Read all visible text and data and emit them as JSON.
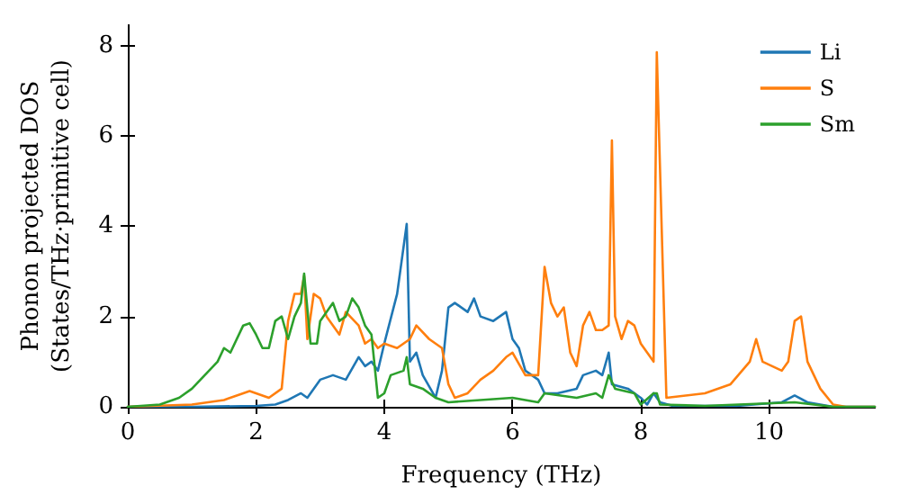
{
  "chart_data": {
    "type": "line",
    "xlabel": "Frequency (THz)",
    "ylabel": "Phonon projected DOS\n(States/THz·primitive cell)",
    "xlim": [
      0,
      11.65
    ],
    "ylim": [
      0,
      8.45
    ],
    "xticks": [
      0,
      2,
      4,
      6,
      8,
      10
    ],
    "yticks": [
      0,
      2,
      4,
      6,
      8
    ],
    "grid": false,
    "legend": "top right",
    "marker": "none",
    "line_style": "solid",
    "series": [
      {
        "name": "Li",
        "color": "#1f77b4",
        "x": [
          0,
          1,
          2,
          2.3,
          2.5,
          2.7,
          2.8,
          3.0,
          3.2,
          3.4,
          3.6,
          3.7,
          3.8,
          3.9,
          4.0,
          4.2,
          4.35,
          4.4,
          4.5,
          4.6,
          4.8,
          4.9,
          5.0,
          5.1,
          5.3,
          5.4,
          5.5,
          5.7,
          5.9,
          6.0,
          6.1,
          6.2,
          6.4,
          6.5,
          6.7,
          7.0,
          7.1,
          7.3,
          7.4,
          7.5,
          7.55,
          7.8,
          8.0,
          8.1,
          8.2,
          8.3,
          8.5,
          9.5,
          10.2,
          10.4,
          10.6,
          11.0,
          11.65
        ],
        "values": [
          0,
          0,
          0.02,
          0.05,
          0.15,
          0.3,
          0.2,
          0.6,
          0.7,
          0.6,
          1.1,
          0.9,
          1.0,
          0.8,
          1.4,
          2.5,
          4.05,
          1.0,
          1.2,
          0.7,
          0.2,
          0.8,
          2.2,
          2.3,
          2.1,
          2.4,
          2.0,
          1.9,
          2.1,
          1.5,
          1.3,
          0.8,
          0.6,
          0.3,
          0.3,
          0.4,
          0.7,
          0.8,
          0.7,
          1.2,
          0.5,
          0.4,
          0.2,
          0.05,
          0.3,
          0.1,
          0.02,
          0.02,
          0.1,
          0.25,
          0.1,
          0,
          0
        ]
      },
      {
        "name": "S",
        "color": "#ff7f0e",
        "x": [
          0,
          1,
          1.5,
          1.8,
          1.9,
          2.0,
          2.2,
          2.4,
          2.5,
          2.6,
          2.7,
          2.75,
          2.8,
          2.9,
          3.0,
          3.1,
          3.3,
          3.4,
          3.6,
          3.7,
          3.8,
          3.9,
          4.0,
          4.2,
          4.3,
          4.4,
          4.5,
          4.7,
          4.9,
          5.0,
          5.1,
          5.3,
          5.5,
          5.7,
          5.9,
          6.0,
          6.2,
          6.4,
          6.5,
          6.6,
          6.7,
          6.8,
          6.9,
          7.0,
          7.1,
          7.2,
          7.3,
          7.4,
          7.5,
          7.55,
          7.6,
          7.7,
          7.8,
          7.9,
          8.0,
          8.2,
          8.25,
          8.4,
          9.0,
          9.4,
          9.7,
          9.8,
          9.9,
          10.2,
          10.3,
          10.4,
          10.5,
          10.6,
          10.8,
          11.0,
          11.2,
          11.65
        ],
        "values": [
          0,
          0.05,
          0.15,
          0.3,
          0.35,
          0.3,
          0.2,
          0.4,
          1.9,
          2.5,
          2.5,
          2.9,
          1.5,
          2.5,
          2.4,
          2.0,
          1.6,
          2.1,
          1.8,
          1.4,
          1.5,
          1.3,
          1.4,
          1.3,
          1.4,
          1.5,
          1.8,
          1.5,
          1.3,
          0.5,
          0.2,
          0.3,
          0.6,
          0.8,
          1.1,
          1.2,
          0.7,
          0.7,
          3.1,
          2.3,
          2.0,
          2.2,
          1.2,
          0.9,
          1.8,
          2.1,
          1.7,
          1.7,
          1.8,
          5.9,
          2.0,
          1.5,
          1.9,
          1.8,
          1.4,
          1.0,
          7.85,
          0.2,
          0.3,
          0.5,
          1.0,
          1.5,
          1.0,
          0.8,
          1.0,
          1.9,
          2.0,
          1.0,
          0.4,
          0.05,
          0,
          0
        ]
      },
      {
        "name": "Sm",
        "color": "#2ca02c",
        "x": [
          0,
          0.5,
          0.8,
          1.0,
          1.2,
          1.4,
          1.5,
          1.6,
          1.8,
          1.9,
          2.0,
          2.1,
          2.2,
          2.3,
          2.4,
          2.5,
          2.6,
          2.7,
          2.75,
          2.85,
          2.95,
          3.0,
          3.2,
          3.3,
          3.4,
          3.5,
          3.6,
          3.7,
          3.8,
          3.9,
          4.0,
          4.1,
          4.3,
          4.35,
          4.4,
          4.6,
          4.8,
          5.0,
          5.5,
          6.0,
          6.2,
          6.4,
          6.5,
          7.0,
          7.3,
          7.4,
          7.5,
          7.6,
          7.9,
          8.0,
          8.2,
          8.25,
          8.3,
          9.0,
          10.4,
          11.0,
          11.65
        ],
        "values": [
          0,
          0.05,
          0.2,
          0.4,
          0.7,
          1.0,
          1.3,
          1.2,
          1.8,
          1.85,
          1.6,
          1.3,
          1.3,
          1.9,
          2.0,
          1.5,
          2.0,
          2.3,
          2.95,
          1.4,
          1.4,
          1.9,
          2.3,
          1.9,
          2.0,
          2.4,
          2.2,
          1.8,
          1.6,
          0.2,
          0.3,
          0.7,
          0.8,
          1.1,
          0.5,
          0.4,
          0.2,
          0.1,
          0.15,
          0.2,
          0.15,
          0.1,
          0.3,
          0.2,
          0.3,
          0.2,
          0.7,
          0.4,
          0.3,
          0.05,
          0.3,
          0.3,
          0.05,
          0.02,
          0.1,
          0,
          0
        ]
      }
    ]
  }
}
